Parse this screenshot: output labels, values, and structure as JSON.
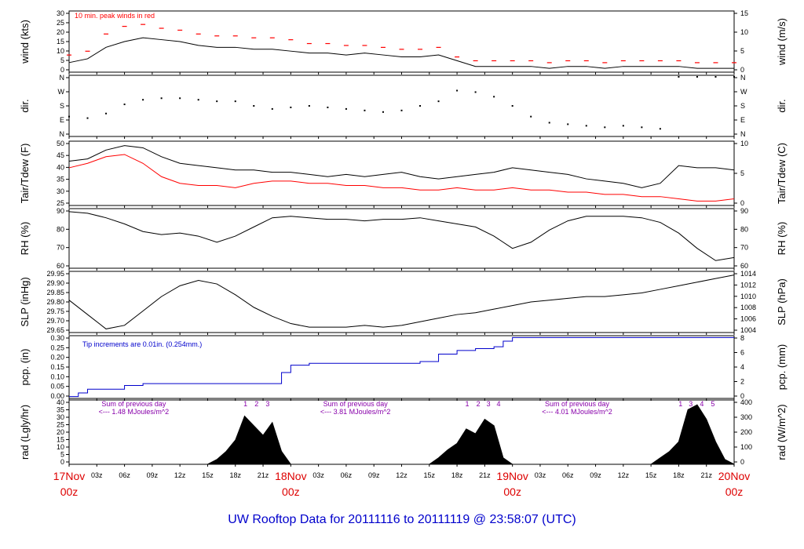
{
  "page": {
    "title": "UW Rooftop Data for 20111116  to  20111119 @ 23:58:07  (UTC)",
    "colors": {
      "frame": "#000000",
      "red": "#ff0000",
      "blue": "#0000cc",
      "purple": "#8800aa",
      "dayRed": "#dd0000"
    }
  },
  "chart_data": [
    {
      "type": "line",
      "id": "wind",
      "ylabel": "wind (kts)",
      "ylabel_right": "wind (m/s)",
      "ylim": [
        0,
        32
      ],
      "yticks": [
        "0",
        "5",
        "10",
        "15",
        "20",
        "25",
        "30"
      ],
      "rticks": [
        "0",
        "5",
        "10",
        "15"
      ],
      "annotation": "10 min. peak winds in red",
      "series": [
        {
          "color": "#000000",
          "x": [
            0,
            2,
            4,
            6,
            8,
            10,
            12,
            14,
            16,
            18,
            20,
            22,
            24,
            26,
            28,
            30,
            32,
            34,
            36,
            38,
            40,
            42,
            44,
            46,
            48,
            50,
            52,
            54,
            56,
            58,
            60,
            62,
            64,
            66,
            68,
            70,
            72
          ],
          "y": [
            5,
            7,
            13,
            16,
            18,
            17,
            16,
            14,
            13,
            13,
            12,
            12,
            11,
            10,
            10,
            9,
            10,
            9,
            8,
            8,
            9,
            6,
            3,
            3,
            3,
            3,
            2,
            3,
            3,
            2,
            3,
            3,
            3,
            3,
            2,
            2,
            2
          ]
        },
        {
          "color": "#ff0000",
          "x": [
            0,
            2,
            4,
            6,
            8,
            10,
            12,
            14,
            16,
            18,
            20,
            22,
            24,
            26,
            28,
            30,
            32,
            34,
            36,
            38,
            40,
            42,
            44,
            46,
            48,
            50,
            52,
            54,
            56,
            58,
            60,
            62,
            64,
            66,
            68,
            70,
            72
          ],
          "y": [
            9,
            11,
            20,
            24,
            25,
            23,
            22,
            20,
            19,
            19,
            18,
            18,
            17,
            15,
            15,
            14,
            14,
            13,
            12,
            12,
            13,
            8,
            6,
            6,
            6,
            6,
            5,
            6,
            6,
            5,
            6,
            6,
            6,
            6,
            5,
            5,
            5
          ]
        }
      ]
    },
    {
      "type": "scatter",
      "id": "dir",
      "ylabel": "dir.",
      "ylabel_right": "dir.",
      "ylim": [
        0,
        4
      ],
      "yticks": [
        "N",
        "E",
        "S",
        "W",
        "N"
      ],
      "rticks": [
        "N",
        "E",
        "S",
        "W",
        "N"
      ],
      "series": [
        {
          "color": "#000000",
          "x": [
            0,
            2,
            4,
            6,
            8,
            10,
            12,
            14,
            16,
            18,
            20,
            22,
            24,
            26,
            28,
            30,
            32,
            34,
            36,
            38,
            40,
            42,
            44,
            46,
            48,
            50,
            52,
            54,
            56,
            58,
            60,
            62,
            64,
            66,
            68,
            70,
            72
          ],
          "y": [
            1.3,
            1.2,
            1.5,
            2.1,
            2.4,
            2.5,
            2.5,
            2.4,
            2.3,
            2.3,
            2.0,
            1.8,
            1.9,
            2.0,
            1.9,
            1.8,
            1.7,
            1.6,
            1.7,
            2.0,
            2.3,
            3.0,
            2.9,
            2.6,
            2.0,
            1.3,
            0.9,
            0.8,
            0.7,
            0.6,
            0.7,
            0.6,
            0.5,
            3.9,
            3.9,
            3.9,
            3.9
          ]
        }
      ]
    },
    {
      "type": "line",
      "id": "temp",
      "ylabel": "Tair/Tdew (F)",
      "ylabel_right": "Tair/Tdew (C)",
      "ylim": [
        25,
        54
      ],
      "yticks": [
        "25",
        "30",
        "35",
        "40",
        "45",
        "50"
      ],
      "rticks": [
        "0",
        "5",
        "10"
      ],
      "series": [
        {
          "color": "#000000",
          "x": [
            0,
            2,
            4,
            6,
            8,
            10,
            12,
            14,
            16,
            18,
            20,
            22,
            24,
            26,
            28,
            30,
            32,
            34,
            36,
            38,
            40,
            42,
            44,
            46,
            48,
            50,
            52,
            54,
            56,
            58,
            60,
            62,
            64,
            66,
            68,
            70,
            72
          ],
          "y": [
            45,
            46,
            50,
            52,
            51,
            47,
            44,
            43,
            42,
            41,
            41,
            40,
            40,
            39,
            38,
            39,
            38,
            39,
            40,
            38,
            37,
            38,
            39,
            40,
            42,
            41,
            40,
            39,
            37,
            36,
            35,
            33,
            35,
            43,
            42,
            42,
            41
          ]
        },
        {
          "color": "#ff0000",
          "x": [
            0,
            2,
            4,
            6,
            8,
            10,
            12,
            14,
            16,
            18,
            20,
            22,
            24,
            26,
            28,
            30,
            32,
            34,
            36,
            38,
            40,
            42,
            44,
            46,
            48,
            50,
            52,
            54,
            56,
            58,
            60,
            62,
            64,
            66,
            68,
            70,
            72
          ],
          "y": [
            42,
            44,
            47,
            48,
            44,
            38,
            35,
            34,
            34,
            33,
            35,
            36,
            36,
            35,
            35,
            34,
            34,
            33,
            33,
            32,
            32,
            33,
            32,
            32,
            33,
            32,
            32,
            31,
            31,
            30,
            30,
            29,
            29,
            28,
            27,
            27,
            28
          ]
        }
      ]
    },
    {
      "type": "line",
      "id": "rh",
      "ylabel": "RH (%)",
      "ylabel_right": "RH (%)",
      "ylim": [
        57,
        96
      ],
      "yticks": [
        "60",
        "70",
        "80",
        "90"
      ],
      "rticks": [
        "60",
        "70",
        "80",
        "90"
      ],
      "series": [
        {
          "color": "#000000",
          "x": [
            0,
            2,
            4,
            6,
            8,
            10,
            12,
            14,
            16,
            18,
            20,
            22,
            24,
            26,
            28,
            30,
            32,
            34,
            36,
            38,
            40,
            42,
            44,
            46,
            48,
            50,
            52,
            54,
            56,
            58,
            60,
            62,
            64,
            66,
            68,
            70,
            72
          ],
          "y": [
            94,
            93,
            90,
            86,
            81,
            79,
            80,
            78,
            74,
            78,
            84,
            90,
            91,
            90,
            89,
            89,
            88,
            89,
            89,
            90,
            88,
            86,
            84,
            78,
            70,
            74,
            82,
            88,
            91,
            91,
            91,
            90,
            87,
            80,
            70,
            62,
            64
          ]
        }
      ]
    },
    {
      "type": "line",
      "id": "slp",
      "ylabel": "SLP (inHg)",
      "ylabel_right": "SLP (hPa)",
      "ylim": [
        29.62,
        29.96
      ],
      "yticks": [
        "29.65",
        "29.70",
        "29.75",
        "29.80",
        "29.85",
        "29.90",
        "29.95"
      ],
      "rticks": [
        "1004",
        "1006",
        "1008",
        "1010",
        "1012",
        "1014"
      ],
      "series": [
        {
          "color": "#000000",
          "x": [
            0,
            2,
            4,
            6,
            8,
            10,
            12,
            14,
            16,
            18,
            20,
            22,
            24,
            26,
            28,
            30,
            32,
            34,
            36,
            38,
            40,
            42,
            44,
            46,
            48,
            50,
            52,
            54,
            56,
            58,
            60,
            62,
            64,
            66,
            68,
            70,
            72
          ],
          "y": [
            29.8,
            29.72,
            29.64,
            29.66,
            29.74,
            29.82,
            29.88,
            29.91,
            29.89,
            29.83,
            29.76,
            29.71,
            29.67,
            29.65,
            29.65,
            29.65,
            29.66,
            29.65,
            29.66,
            29.68,
            29.7,
            29.72,
            29.73,
            29.75,
            29.77,
            29.79,
            29.8,
            29.81,
            29.82,
            29.82,
            29.83,
            29.84,
            29.86,
            29.88,
            29.9,
            29.92,
            29.94
          ]
        }
      ]
    },
    {
      "type": "line",
      "id": "pcp",
      "ylabel": "pcp. (in)",
      "ylabel_right": "pcp. (mm)",
      "ylim": [
        0,
        0.34
      ],
      "yticks": [
        "0.00",
        "0.05",
        "0.10",
        "0.15",
        "0.20",
        "0.25",
        "0.30"
      ],
      "rticks": [
        "0",
        "2",
        "4",
        "6",
        "8"
      ],
      "annotation": "Tip increments are 0.01in. (0.254mm.)",
      "series": [
        {
          "color": "#0000cc",
          "x": [
            0,
            1,
            2,
            4,
            6,
            8,
            10,
            12,
            14,
            16,
            18,
            20,
            22,
            23,
            24,
            26,
            28,
            30,
            32,
            34,
            36,
            38,
            40,
            42,
            44,
            46,
            47,
            48,
            50,
            52,
            54,
            56,
            58,
            60,
            62,
            64,
            66,
            68,
            70,
            72
          ],
          "y": [
            0.01,
            0.03,
            0.05,
            0.05,
            0.07,
            0.08,
            0.08,
            0.08,
            0.08,
            0.08,
            0.08,
            0.08,
            0.08,
            0.14,
            0.18,
            0.19,
            0.19,
            0.19,
            0.19,
            0.19,
            0.19,
            0.2,
            0.24,
            0.26,
            0.27,
            0.28,
            0.31,
            0.33,
            0.33,
            0.33,
            0.33,
            0.33,
            0.33,
            0.33,
            0.33,
            0.33,
            0.33,
            0.33,
            0.33,
            0.33
          ]
        }
      ]
    },
    {
      "type": "area",
      "id": "rad",
      "ylabel": "rad (Lgly/hr)",
      "ylabel_right": "rad (W/m^2)",
      "ylim": [
        0,
        40
      ],
      "yticks": [
        "0",
        "5",
        "10",
        "15",
        "20",
        "25",
        "30",
        "35",
        "40"
      ],
      "rticks": [
        "0",
        "100",
        "200",
        "300",
        "400"
      ],
      "annotations": [
        {
          "x": 7,
          "lines": [
            "Sum of previous day",
            "<--- 1.48 MJoules/m^2"
          ]
        },
        {
          "x": 31,
          "lines": [
            "Sum of previous day",
            "<--- 3.81 MJoules/m^2"
          ]
        },
        {
          "x": 55,
          "lines": [
            "Sum of previous day",
            "<--- 4.01 MJoules/m^2"
          ]
        }
      ],
      "markers": [
        {
          "x": 19.1,
          "label": "1"
        },
        {
          "x": 20.3,
          "label": "2"
        },
        {
          "x": 21.5,
          "label": "3"
        },
        {
          "x": 43.1,
          "label": "1"
        },
        {
          "x": 44.3,
          "label": "2"
        },
        {
          "x": 45.4,
          "label": "3"
        },
        {
          "x": 46.5,
          "label": "4"
        },
        {
          "x": 66.2,
          "label": "1"
        },
        {
          "x": 67.3,
          "label": "3"
        },
        {
          "x": 68.5,
          "label": "4"
        },
        {
          "x": 69.7,
          "label": "5"
        }
      ],
      "series": [
        {
          "color": "#000000",
          "x": [
            0,
            15,
            16,
            17,
            18,
            19,
            20,
            21,
            22,
            23,
            24,
            39,
            40,
            41,
            42,
            43,
            44,
            45,
            46,
            47,
            48,
            63,
            64,
            65,
            66,
            67,
            68,
            69,
            70,
            71,
            72
          ],
          "y": [
            0,
            0,
            3,
            8,
            15,
            30,
            24,
            18,
            26,
            8,
            0,
            0,
            4,
            9,
            13,
            22,
            19,
            28,
            24,
            4,
            0,
            0,
            4,
            8,
            14,
            34,
            37,
            28,
            14,
            3,
            0
          ]
        }
      ]
    }
  ],
  "xaxis": {
    "hours": [
      "03z",
      "06z",
      "09z",
      "12z",
      "15z",
      "18z",
      "21z"
    ],
    "days": [
      {
        "x": 0,
        "date": "17Nov",
        "time": "00z"
      },
      {
        "x": 24,
        "date": "18Nov",
        "time": "00z"
      },
      {
        "x": 48,
        "date": "19Nov",
        "time": "00z"
      },
      {
        "x": 72,
        "date": "20Nov",
        "time": "00z"
      }
    ]
  }
}
